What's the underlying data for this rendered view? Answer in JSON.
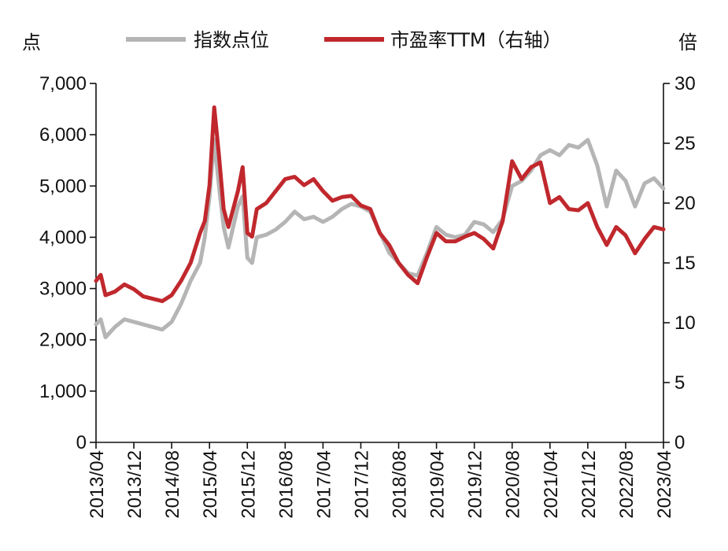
{
  "chart_data": {
    "type": "line",
    "left_unit": "点",
    "right_unit": "倍",
    "y_left": {
      "lim": [
        0,
        7000
      ],
      "ticks": [
        0,
        1000,
        2000,
        3000,
        4000,
        5000,
        6000,
        7000
      ],
      "tick_labels": [
        "0",
        "1,000",
        "2,000",
        "3,000",
        "4,000",
        "5,000",
        "6,000",
        "7,000"
      ]
    },
    "y_right": {
      "lim": [
        0,
        30
      ],
      "ticks": [
        0,
        5,
        10,
        15,
        20,
        25,
        30
      ],
      "tick_labels": [
        "0",
        "5",
        "10",
        "15",
        "20",
        "25",
        "30"
      ]
    },
    "x_ticks": [
      "2013/04",
      "2013/12",
      "2014/08",
      "2015/04",
      "2015/12",
      "2016/08",
      "2017/04",
      "2017/12",
      "2018/08",
      "2019/04",
      "2019/12",
      "2020/08",
      "2021/04",
      "2021/12",
      "2022/08",
      "2023/04"
    ],
    "x_range": [
      "2013/04",
      "2023/04"
    ],
    "legend_position": "top",
    "series": [
      {
        "name": "指数点位",
        "axis": "left",
        "color": "#b5b5b5",
        "points": [
          [
            "2013/04",
            2300
          ],
          [
            "2013/05",
            2400
          ],
          [
            "2013/06",
            2050
          ],
          [
            "2013/08",
            2250
          ],
          [
            "2013/10",
            2400
          ],
          [
            "2013/12",
            2350
          ],
          [
            "2014/02",
            2300
          ],
          [
            "2014/04",
            2250
          ],
          [
            "2014/06",
            2200
          ],
          [
            "2014/08",
            2350
          ],
          [
            "2014/10",
            2700
          ],
          [
            "2014/12",
            3150
          ],
          [
            "2015/02",
            3500
          ],
          [
            "2015/03",
            4000
          ],
          [
            "2015/04",
            4800
          ],
          [
            "2015/05",
            5900
          ],
          [
            "2015/06",
            5000
          ],
          [
            "2015/07",
            4200
          ],
          [
            "2015/08",
            3800
          ],
          [
            "2015/10",
            4600
          ],
          [
            "2015/11",
            4800
          ],
          [
            "2015/12",
            3600
          ],
          [
            "2016/01",
            3500
          ],
          [
            "2016/02",
            4000
          ],
          [
            "2016/04",
            4050
          ],
          [
            "2016/06",
            4150
          ],
          [
            "2016/08",
            4300
          ],
          [
            "2016/10",
            4500
          ],
          [
            "2016/12",
            4350
          ],
          [
            "2017/02",
            4400
          ],
          [
            "2017/04",
            4300
          ],
          [
            "2017/06",
            4400
          ],
          [
            "2017/08",
            4550
          ],
          [
            "2017/10",
            4650
          ],
          [
            "2017/12",
            4600
          ],
          [
            "2018/02",
            4500
          ],
          [
            "2018/04",
            4100
          ],
          [
            "2018/06",
            3700
          ],
          [
            "2018/08",
            3500
          ],
          [
            "2018/10",
            3300
          ],
          [
            "2018/12",
            3250
          ],
          [
            "2019/02",
            3700
          ],
          [
            "2019/04",
            4200
          ],
          [
            "2019/06",
            4050
          ],
          [
            "2019/08",
            4000
          ],
          [
            "2019/10",
            4050
          ],
          [
            "2019/12",
            4300
          ],
          [
            "2020/02",
            4250
          ],
          [
            "2020/04",
            4100
          ],
          [
            "2020/06",
            4350
          ],
          [
            "2020/08",
            5000
          ],
          [
            "2020/10",
            5100
          ],
          [
            "2020/12",
            5300
          ],
          [
            "2021/02",
            5600
          ],
          [
            "2021/04",
            5700
          ],
          [
            "2021/06",
            5600
          ],
          [
            "2021/08",
            5800
          ],
          [
            "2021/10",
            5750
          ],
          [
            "2021/12",
            5900
          ],
          [
            "2022/02",
            5400
          ],
          [
            "2022/04",
            4600
          ],
          [
            "2022/06",
            5300
          ],
          [
            "2022/08",
            5100
          ],
          [
            "2022/10",
            4600
          ],
          [
            "2022/12",
            5050
          ],
          [
            "2023/02",
            5150
          ],
          [
            "2023/04",
            4950
          ]
        ]
      },
      {
        "name": "市盈率TTM（右轴）",
        "axis": "right",
        "color": "#c0282d",
        "points": [
          [
            "2013/04",
            13.5
          ],
          [
            "2013/05",
            14.0
          ],
          [
            "2013/06",
            12.3
          ],
          [
            "2013/08",
            12.6
          ],
          [
            "2013/10",
            13.2
          ],
          [
            "2013/12",
            12.8
          ],
          [
            "2014/02",
            12.2
          ],
          [
            "2014/04",
            12.0
          ],
          [
            "2014/06",
            11.8
          ],
          [
            "2014/08",
            12.3
          ],
          [
            "2014/10",
            13.5
          ],
          [
            "2014/12",
            15.0
          ],
          [
            "2015/02",
            17.5
          ],
          [
            "2015/03",
            18.5
          ],
          [
            "2015/04",
            21.5
          ],
          [
            "2015/05",
            28.0
          ],
          [
            "2015/06",
            24.0
          ],
          [
            "2015/07",
            19.5
          ],
          [
            "2015/08",
            18.0
          ],
          [
            "2015/10",
            21.0
          ],
          [
            "2015/11",
            23.0
          ],
          [
            "2015/12",
            17.5
          ],
          [
            "2016/01",
            17.2
          ],
          [
            "2016/02",
            19.5
          ],
          [
            "2016/04",
            20.0
          ],
          [
            "2016/06",
            21.0
          ],
          [
            "2016/08",
            22.0
          ],
          [
            "2016/10",
            22.2
          ],
          [
            "2016/12",
            21.5
          ],
          [
            "2017/02",
            22.0
          ],
          [
            "2017/04",
            21.0
          ],
          [
            "2017/06",
            20.2
          ],
          [
            "2017/08",
            20.5
          ],
          [
            "2017/10",
            20.6
          ],
          [
            "2017/12",
            19.8
          ],
          [
            "2018/02",
            19.5
          ],
          [
            "2018/04",
            17.5
          ],
          [
            "2018/06",
            16.5
          ],
          [
            "2018/08",
            15.0
          ],
          [
            "2018/10",
            14.0
          ],
          [
            "2018/12",
            13.3
          ],
          [
            "2019/02",
            15.5
          ],
          [
            "2019/04",
            17.5
          ],
          [
            "2019/06",
            16.8
          ],
          [
            "2019/08",
            16.8
          ],
          [
            "2019/10",
            17.2
          ],
          [
            "2019/12",
            17.5
          ],
          [
            "2020/02",
            17.0
          ],
          [
            "2020/04",
            16.2
          ],
          [
            "2020/06",
            18.5
          ],
          [
            "2020/08",
            23.5
          ],
          [
            "2020/10",
            22.0
          ],
          [
            "2020/12",
            23.0
          ],
          [
            "2021/02",
            23.4
          ],
          [
            "2021/04",
            20.0
          ],
          [
            "2021/06",
            20.5
          ],
          [
            "2021/08",
            19.5
          ],
          [
            "2021/10",
            19.4
          ],
          [
            "2021/12",
            20.0
          ],
          [
            "2022/02",
            18.0
          ],
          [
            "2022/04",
            16.5
          ],
          [
            "2022/06",
            18.0
          ],
          [
            "2022/08",
            17.3
          ],
          [
            "2022/10",
            15.8
          ],
          [
            "2022/12",
            17.0
          ],
          [
            "2023/02",
            18.0
          ],
          [
            "2023/04",
            17.8
          ]
        ]
      }
    ]
  }
}
